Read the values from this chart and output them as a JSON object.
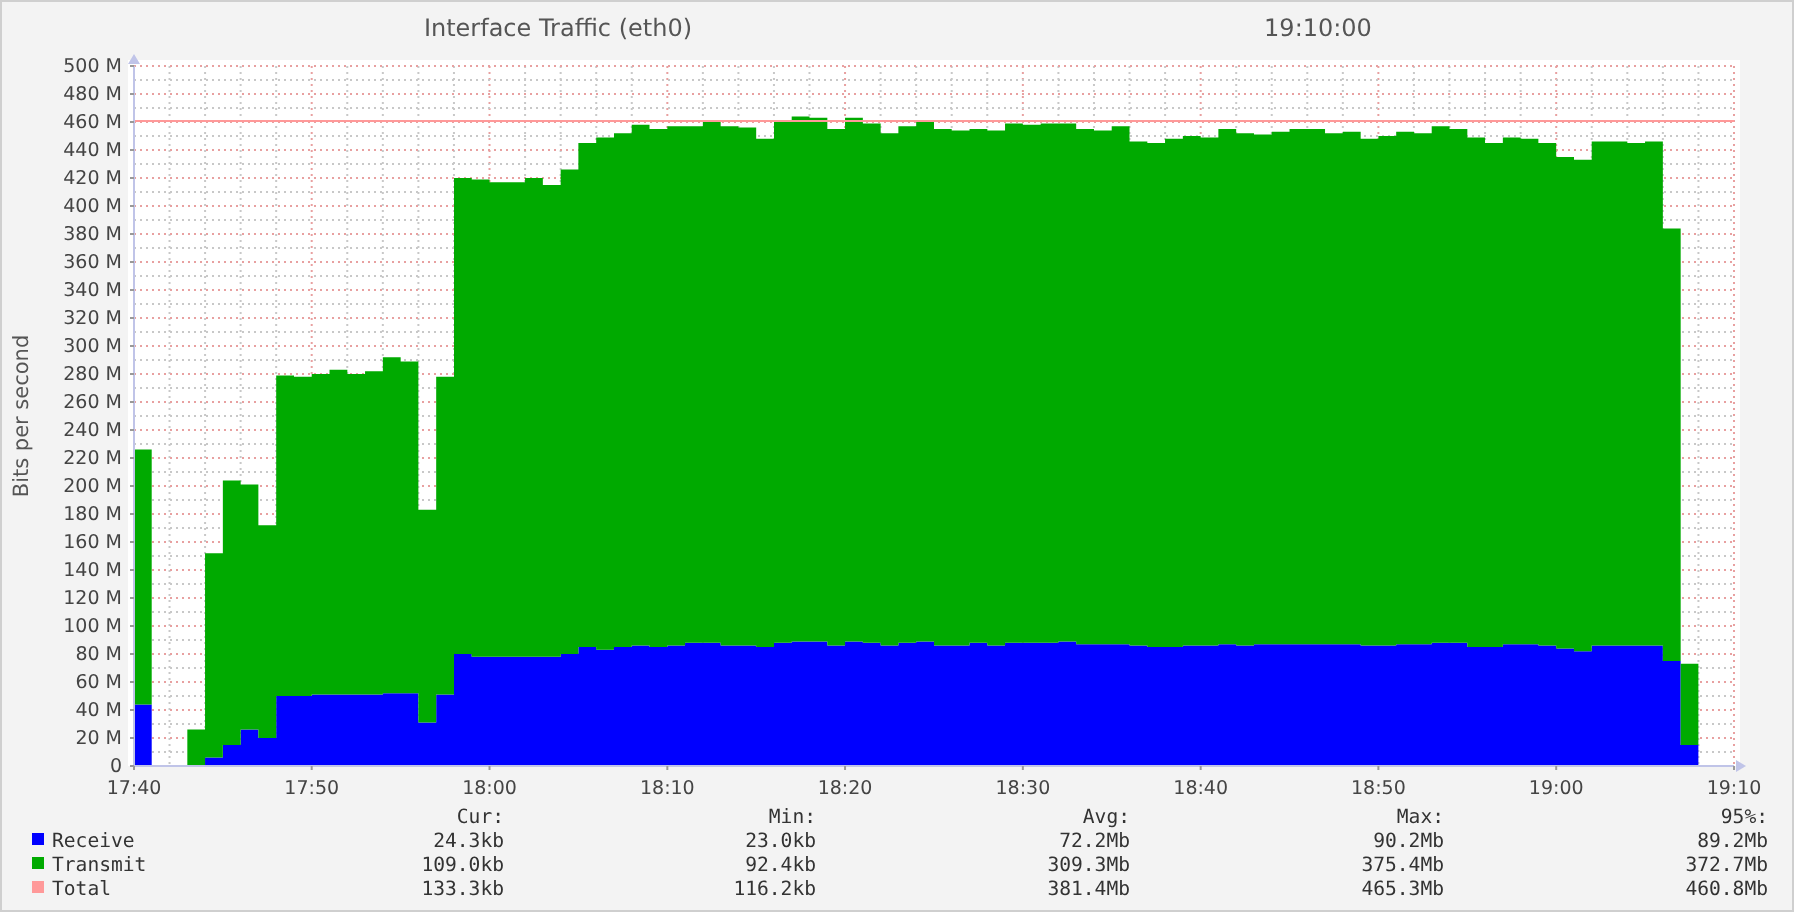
{
  "chart_data": {
    "type": "area",
    "title": "Interface Traffic (eth0)",
    "subtitle": "19:10:00",
    "ylabel": "Bits per second",
    "stacked": true,
    "grid": true,
    "legend": "bottom left",
    "x": [
      17.6667,
      17.6833,
      17.7,
      17.7167,
      17.7333,
      17.75,
      17.7667,
      17.7833,
      17.8,
      17.8167,
      17.8333,
      17.85,
      17.8667,
      17.8833,
      17.9,
      17.9167,
      17.9333,
      17.95,
      17.9667,
      17.9833,
      18,
      18.0167,
      18.0333,
      18.05,
      18.0667,
      18.0833,
      18.1,
      18.1167,
      18.1333,
      18.15,
      18.1667,
      18.1833,
      18.2,
      18.2167,
      18.2333,
      18.25,
      18.2667,
      18.2833,
      18.3,
      18.3167,
      18.3333,
      18.35,
      18.3667,
      18.3833,
      18.4,
      18.4167,
      18.4333,
      18.45,
      18.4667,
      18.4833,
      18.5,
      18.5167,
      18.5333,
      18.55,
      18.5667,
      18.5833,
      18.6,
      18.6167,
      18.6333,
      18.65,
      18.6667,
      18.6833,
      18.7,
      18.7167,
      18.7333,
      18.75,
      18.7667,
      18.7833,
      18.8,
      18.8167,
      18.8333,
      18.85,
      18.8667,
      18.8833,
      18.9,
      18.9167,
      18.9333,
      18.95,
      18.9667,
      18.9833,
      19,
      19.0167,
      19.0333,
      19.05,
      19.0667,
      19.0833,
      19.1,
      19.1167,
      19.1333,
      19.15
    ],
    "series": [
      {
        "name": "Receive",
        "color": "#0000ff",
        "values": [
          44,
          0,
          0,
          0,
          6,
          15,
          26,
          20,
          50,
          50,
          51,
          51,
          51,
          51,
          52,
          52,
          31,
          51,
          80,
          78,
          78,
          78,
          78,
          78,
          80,
          85,
          83,
          85,
          86,
          85,
          86,
          88,
          88,
          86,
          86,
          85,
          88,
          89,
          89,
          86,
          89,
          88,
          86,
          88,
          89,
          86,
          86,
          88,
          86,
          88,
          88,
          88,
          89,
          87,
          87,
          87,
          86,
          85,
          85,
          86,
          86,
          87,
          86,
          87,
          87,
          87,
          87,
          87,
          87,
          86,
          86,
          87,
          87,
          88,
          88,
          85,
          85,
          87,
          87,
          86,
          84,
          82,
          86,
          86,
          86,
          86,
          75,
          15,
          0,
          0
        ]
      },
      {
        "name": "Transmit",
        "color": "#00aa00",
        "values": [
          182,
          0,
          0,
          26,
          146,
          189,
          175,
          152,
          229,
          228,
          229,
          232,
          229,
          231,
          240,
          237,
          152,
          227,
          340,
          341,
          339,
          339,
          342,
          337,
          346,
          360,
          366,
          367,
          372,
          370,
          371,
          369,
          372,
          371,
          370,
          363,
          373,
          375,
          374,
          369,
          374,
          371,
          366,
          369,
          371,
          369,
          368,
          367,
          368,
          371,
          370,
          371,
          370,
          368,
          367,
          370,
          360,
          360,
          363,
          364,
          363,
          368,
          366,
          364,
          366,
          368,
          368,
          365,
          366,
          362,
          364,
          366,
          365,
          369,
          367,
          364,
          360,
          362,
          361,
          359,
          351,
          351,
          360,
          360,
          359,
          360,
          309,
          58,
          0,
          0
        ]
      }
    ],
    "xlim": [
      17.6667,
      19.1667
    ],
    "xticks": [
      {
        "value": 17.6667,
        "label": "17:40"
      },
      {
        "value": 17.8333,
        "label": "17:50"
      },
      {
        "value": 18,
        "label": "18:00"
      },
      {
        "value": 18.1667,
        "label": "18:10"
      },
      {
        "value": 18.3333,
        "label": "18:20"
      },
      {
        "value": 18.5,
        "label": "18:30"
      },
      {
        "value": 18.6667,
        "label": "18:40"
      },
      {
        "value": 18.8333,
        "label": "18:50"
      },
      {
        "value": 19,
        "label": "19:00"
      },
      {
        "value": 19.1667,
        "label": "19:10"
      }
    ],
    "ylim": [
      0,
      500
    ],
    "yticks": [
      0,
      {
        "value": 20,
        "label": "20 M"
      },
      {
        "value": 40,
        "label": "40 M"
      },
      {
        "value": 60,
        "label": "60 M"
      },
      {
        "value": 80,
        "label": "80 M"
      },
      {
        "value": 100,
        "label": "100 M"
      },
      {
        "value": 120,
        "label": "120 M"
      },
      {
        "value": 140,
        "label": "140 M"
      },
      {
        "value": 160,
        "label": "160 M"
      },
      {
        "value": 180,
        "label": "180 M"
      },
      {
        "value": 200,
        "label": "200 M"
      },
      {
        "value": 220,
        "label": "220 M"
      },
      {
        "value": 240,
        "label": "240 M"
      },
      {
        "value": 260,
        "label": "260 M"
      },
      {
        "value": 280,
        "label": "280 M"
      },
      {
        "value": 300,
        "label": "300 M"
      },
      {
        "value": 320,
        "label": "320 M"
      },
      {
        "value": 340,
        "label": "340 M"
      },
      {
        "value": 360,
        "label": "360 M"
      },
      {
        "value": 380,
        "label": "380 M"
      },
      {
        "value": 400,
        "label": "400 M"
      },
      {
        "value": 420,
        "label": "420 M"
      },
      {
        "value": 440,
        "label": "440 M"
      },
      {
        "value": 460,
        "label": "460 M"
      },
      {
        "value": 480,
        "label": "480 M"
      },
      {
        "value": 500,
        "label": "500 M"
      }
    ],
    "ref_lines": [
      {
        "axis": "y",
        "value": 460.8,
        "label": "Total",
        "color": "#ff9999"
      }
    ],
    "annotations": [
      "Cur:",
      "Min:",
      "Avg:",
      "Max:",
      "95%:",
      "24.3kb",
      "23.0kb",
      "72.2Mb",
      "90.2Mb",
      "89.2Mb",
      "109.0kb",
      "92.4kb",
      "309.3Mb",
      "375.4Mb",
      "372.7Mb",
      "133.3kb",
      "116.2kb",
      "381.4Mb",
      "465.3Mb",
      "460.8Mb"
    ]
  }
}
